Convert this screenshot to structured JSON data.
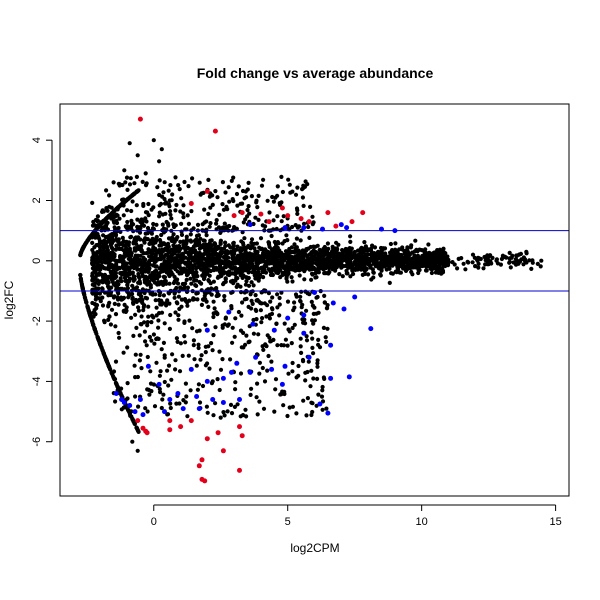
{
  "chart_data": {
    "type": "scatter",
    "title": "Fold change vs average abundance",
    "xlabel": "log2CPM",
    "ylabel": "log2FC",
    "xlim": [
      -3.5,
      15.5
    ],
    "ylim": [
      -7.8,
      5.2
    ],
    "x_ticks": [
      0,
      5,
      10,
      15
    ],
    "y_ticks": [
      -6,
      -4,
      -2,
      0,
      2,
      4
    ],
    "grid": false,
    "legend": "none",
    "reference_lines": [
      {
        "axis": "y",
        "value": 1,
        "color": "#0000cc"
      },
      {
        "axis": "y",
        "value": -1,
        "color": "#0000cc"
      }
    ],
    "colors": {
      "not_significant": "#000000",
      "significant_small_fc": "#0000ff",
      "significant_large_fc": "#e3001b"
    },
    "series": [
      {
        "group": "highlight-red",
        "color": "#e3001b",
        "points": [
          [
            -0.5,
            4.7
          ],
          [
            2.3,
            4.3
          ],
          [
            1.4,
            1.9
          ],
          [
            2.0,
            2.3
          ],
          [
            3.0,
            1.5
          ],
          [
            3.3,
            1.6
          ],
          [
            4.0,
            1.55
          ],
          [
            4.3,
            1.3
          ],
          [
            4.8,
            1.75
          ],
          [
            5.0,
            1.5
          ],
          [
            5.5,
            1.4
          ],
          [
            5.8,
            1.3
          ],
          [
            6.5,
            1.6
          ],
          [
            7.4,
            1.3
          ],
          [
            7.8,
            1.6
          ],
          [
            6.8,
            1.15
          ],
          [
            -0.6,
            -5.3
          ],
          [
            -0.4,
            -5.55
          ],
          [
            -0.3,
            -5.65
          ],
          [
            -0.25,
            -5.7
          ],
          [
            0.6,
            -5.3
          ],
          [
            0.6,
            -5.6
          ],
          [
            1.0,
            -5.5
          ],
          [
            1.4,
            -5.3
          ],
          [
            2.0,
            -5.9
          ],
          [
            2.4,
            -5.7
          ],
          [
            2.6,
            -6.3
          ],
          [
            3.2,
            -5.5
          ],
          [
            3.3,
            -5.8
          ],
          [
            1.8,
            -6.6
          ],
          [
            1.7,
            -6.8
          ],
          [
            3.2,
            -6.95
          ],
          [
            1.8,
            -7.25
          ],
          [
            1.9,
            -7.3
          ]
        ]
      },
      {
        "group": "highlight-blue",
        "color": "#0000ff",
        "points": [
          [
            4.9,
            1.1
          ],
          [
            5.6,
            1.1
          ],
          [
            6.3,
            1.05
          ],
          [
            7.0,
            1.2
          ],
          [
            8.5,
            1.05
          ],
          [
            9.0,
            1.0
          ],
          [
            7.2,
            1.1
          ],
          [
            3.6,
            1.2
          ],
          [
            6.0,
            -1.05
          ],
          [
            6.7,
            -1.4
          ],
          [
            7.1,
            -1.6
          ],
          [
            7.5,
            -1.2
          ],
          [
            5.6,
            -1.8
          ],
          [
            5.0,
            -1.9
          ],
          [
            4.5,
            -2.3
          ],
          [
            3.7,
            -2.1
          ],
          [
            2.8,
            -1.7
          ],
          [
            2.0,
            -2.3
          ],
          [
            5.6,
            -2.4
          ],
          [
            8.1,
            -2.25
          ],
          [
            6.6,
            -2.8
          ],
          [
            5.8,
            -3.2
          ],
          [
            4.9,
            -3.5
          ],
          [
            4.4,
            -3.6
          ],
          [
            3.8,
            -3.2
          ],
          [
            3.1,
            -3.4
          ],
          [
            2.6,
            -3.9
          ],
          [
            2.9,
            -3.7
          ],
          [
            2.2,
            -4.6
          ],
          [
            2.0,
            -4.0
          ],
          [
            1.4,
            -3.6
          ],
          [
            0.9,
            -4.4
          ],
          [
            0.6,
            -4.6
          ],
          [
            0.2,
            -4.1
          ],
          [
            -0.2,
            -3.5
          ],
          [
            -0.5,
            -4.6
          ],
          [
            -0.4,
            -5.1
          ],
          [
            -0.7,
            -5.0
          ],
          [
            -0.9,
            -4.8
          ],
          [
            -1.2,
            -4.6
          ],
          [
            -1.4,
            -4.4
          ],
          [
            -1.1,
            -4.7
          ],
          [
            1.1,
            -4.9
          ],
          [
            1.6,
            -4.5
          ],
          [
            3.2,
            -4.6
          ],
          [
            2.6,
            -4.7
          ],
          [
            3.6,
            -3.7
          ],
          [
            6.2,
            -4.75
          ],
          [
            6.5,
            -5.05
          ],
          [
            6.6,
            -3.9
          ],
          [
            7.3,
            -3.85
          ],
          [
            4.8,
            -4.1
          ],
          [
            1.7,
            -4.9
          ],
          [
            0.4,
            -5.0
          ]
        ]
      }
    ]
  }
}
